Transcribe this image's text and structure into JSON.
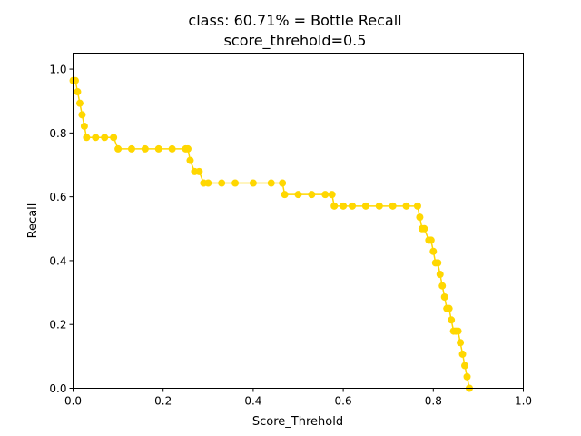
{
  "chart_data": {
    "type": "line",
    "title": "class: 60.71% = Bottle Recall",
    "subtitle": "score_threhold=0.5",
    "xlabel": "Score_Threhold",
    "ylabel": "Recall",
    "xlim": [
      0.0,
      1.0
    ],
    "ylim": [
      0.0,
      1.05
    ],
    "xticks": [
      "0.0",
      "0.2",
      "0.4",
      "0.6",
      "0.8",
      "1.0"
    ],
    "yticks": [
      "0.0",
      "0.2",
      "0.4",
      "0.6",
      "0.8",
      "1.0"
    ],
    "grid": false,
    "legend": "none",
    "marker": "circle",
    "color": "#FFD700",
    "series": [
      {
        "x": [
          0.0,
          0.005,
          0.01,
          0.015,
          0.02,
          0.025,
          0.03,
          0.05,
          0.07,
          0.09,
          0.1,
          0.13,
          0.16,
          0.19,
          0.22,
          0.25,
          0.255,
          0.26,
          0.27,
          0.28,
          0.29,
          0.3,
          0.33,
          0.36,
          0.4,
          0.44,
          0.465,
          0.47,
          0.5,
          0.53,
          0.56,
          0.575,
          0.58,
          0.6,
          0.62,
          0.65,
          0.68,
          0.71,
          0.74,
          0.765,
          0.77,
          0.775,
          0.78,
          0.79,
          0.795,
          0.8,
          0.805,
          0.81,
          0.815,
          0.82,
          0.825,
          0.83,
          0.835,
          0.84,
          0.845,
          0.85,
          0.855,
          0.86,
          0.865,
          0.87,
          0.875,
          0.88
        ],
        "y": [
          0.964,
          0.964,
          0.929,
          0.893,
          0.857,
          0.821,
          0.786,
          0.786,
          0.786,
          0.786,
          0.75,
          0.75,
          0.75,
          0.75,
          0.75,
          0.75,
          0.75,
          0.714,
          0.679,
          0.679,
          0.643,
          0.643,
          0.643,
          0.643,
          0.643,
          0.643,
          0.643,
          0.607,
          0.607,
          0.607,
          0.607,
          0.607,
          0.571,
          0.571,
          0.571,
          0.571,
          0.571,
          0.571,
          0.571,
          0.571,
          0.536,
          0.5,
          0.5,
          0.464,
          0.464,
          0.429,
          0.393,
          0.393,
          0.357,
          0.321,
          0.286,
          0.25,
          0.25,
          0.214,
          0.179,
          0.179,
          0.179,
          0.143,
          0.107,
          0.071,
          0.036,
          0.0
        ]
      }
    ]
  }
}
